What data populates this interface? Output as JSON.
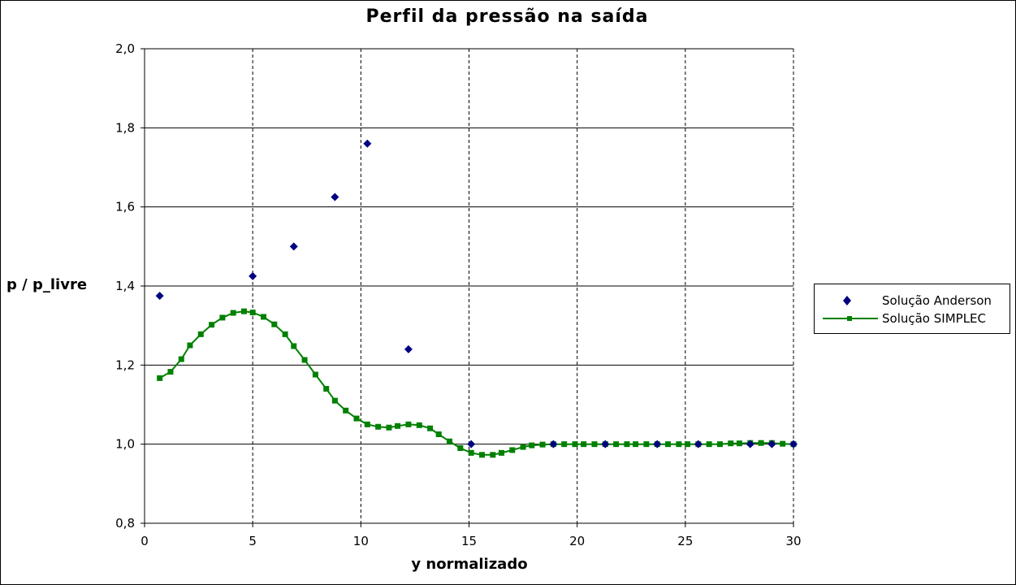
{
  "chart_data": {
    "type": "scatter",
    "title": "Perfil da pressão na saída",
    "xlabel": "y normalizado",
    "ylabel": "p / p_livre",
    "xlim": [
      0,
      30
    ],
    "ylim": [
      0.8,
      2.0
    ],
    "xticks": [
      0,
      5,
      10,
      15,
      20,
      25,
      30
    ],
    "yticks": [
      0.8,
      1.0,
      1.2,
      1.4,
      1.6,
      1.8,
      2.0
    ],
    "xtick_labels": [
      "0",
      "5",
      "10",
      "15",
      "20",
      "25",
      "30"
    ],
    "ytick_labels": [
      "0,8",
      "1,0",
      "1,2",
      "1,4",
      "1,6",
      "1,8",
      "2,0"
    ],
    "grid": {
      "horizontal": "solid",
      "vertical": "dashed"
    },
    "legend_position": "right",
    "series": [
      {
        "name": "Solução Anderson",
        "style": "markers",
        "marker": "diamond",
        "color": "#000080",
        "x": [
          0.7,
          5.0,
          6.9,
          8.8,
          10.3,
          12.2,
          15.1,
          18.9,
          21.3,
          23.7,
          25.6,
          28.0,
          29.0,
          30.0
        ],
        "y": [
          1.375,
          1.425,
          1.5,
          1.625,
          1.76,
          1.24,
          1.0,
          1.0,
          1.0,
          1.0,
          1.0,
          1.0,
          1.0,
          1.0
        ]
      },
      {
        "name": "Solução SIMPLEC",
        "style": "line+markers",
        "marker": "square",
        "color": "#008000",
        "x": [
          0.7,
          1.2,
          1.7,
          2.1,
          2.6,
          3.1,
          3.6,
          4.1,
          4.6,
          5.0,
          5.5,
          6.0,
          6.5,
          6.9,
          7.4,
          7.9,
          8.4,
          8.8,
          9.3,
          9.8,
          10.3,
          10.8,
          11.3,
          11.7,
          12.2,
          12.7,
          13.2,
          13.6,
          14.1,
          14.6,
          15.1,
          15.6,
          16.1,
          16.5,
          17.0,
          17.5,
          17.9,
          18.4,
          18.9,
          19.4,
          19.9,
          20.3,
          20.8,
          21.3,
          21.8,
          22.3,
          22.7,
          23.2,
          23.7,
          24.2,
          24.7,
          25.1,
          25.6,
          26.1,
          26.6,
          27.1,
          27.5,
          28.0,
          28.5,
          29.0,
          29.5,
          30.0
        ],
        "y": [
          1.167,
          1.183,
          1.215,
          1.25,
          1.278,
          1.302,
          1.32,
          1.332,
          1.336,
          1.333,
          1.322,
          1.303,
          1.278,
          1.248,
          1.213,
          1.176,
          1.14,
          1.11,
          1.085,
          1.065,
          1.05,
          1.044,
          1.042,
          1.046,
          1.05,
          1.048,
          1.04,
          1.025,
          1.007,
          0.99,
          0.978,
          0.973,
          0.973,
          0.978,
          0.985,
          0.993,
          0.997,
          0.999,
          1.0,
          1.0,
          1.0,
          1.0,
          1.0,
          1.0,
          1.0,
          1.0,
          1.0,
          1.0,
          1.0,
          1.0,
          1.0,
          1.0,
          1.0,
          1.0,
          1.0,
          1.002,
          1.002,
          1.003,
          1.003,
          1.003,
          1.001,
          1.0
        ]
      }
    ]
  }
}
